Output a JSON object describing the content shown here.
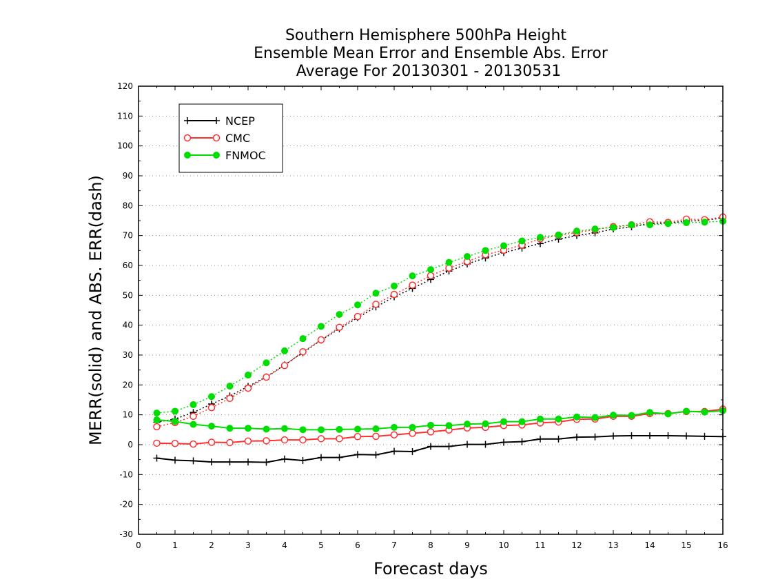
{
  "chart_data": {
    "type": "line",
    "title_lines": [
      "Southern Hemisphere 500hPa Height",
      "Ensemble Mean Error and Ensemble Abs. Error",
      "Average For 20130301 - 20130531"
    ],
    "xlabel": "Forecast days",
    "ylabel": "MERR(solid) and ABS. ERR(dash)",
    "xlim": [
      0,
      16
    ],
    "ylim": [
      -30,
      120
    ],
    "xticks": [
      0,
      1,
      2,
      3,
      4,
      5,
      6,
      7,
      8,
      9,
      10,
      11,
      12,
      13,
      14,
      15,
      16
    ],
    "yticks": [
      -30,
      -20,
      -10,
      0,
      10,
      20,
      30,
      40,
      50,
      60,
      70,
      80,
      90,
      100,
      110,
      120
    ],
    "grid": true,
    "legend_position": "top-left",
    "x": [
      0.5,
      1,
      1.5,
      2,
      2.5,
      3,
      3.5,
      4,
      4.5,
      5,
      5.5,
      6,
      6.5,
      7,
      7.5,
      8,
      8.5,
      9,
      9.5,
      10,
      10.5,
      11,
      11.5,
      12,
      12.5,
      13,
      13.5,
      14,
      14.5,
      15,
      15.5,
      16
    ],
    "series": [
      {
        "name": "NCEP",
        "color": "#000000",
        "marker": "plus",
        "merr": [
          -4.5,
          -5.2,
          -5.4,
          -5.8,
          -5.8,
          -5.8,
          -5.9,
          -4.8,
          -5.3,
          -4.3,
          -4.3,
          -3.3,
          -3.4,
          -2.2,
          -2.3,
          -0.6,
          -0.6,
          0.1,
          0.1,
          0.8,
          1.0,
          1.9,
          1.9,
          2.5,
          2.6,
          2.9,
          3.0,
          3.0,
          3.0,
          2.9,
          2.8,
          2.7
        ],
        "abs_err": [
          7.5,
          8.6,
          10.8,
          13.6,
          16.3,
          19.5,
          22.7,
          26.7,
          30.8,
          35.0,
          38.8,
          42.5,
          46.1,
          49.5,
          52.3,
          55.3,
          58.1,
          60.5,
          62.5,
          64.3,
          65.8,
          67.3,
          68.8,
          70.0,
          70.9,
          72.2,
          72.9,
          74.0,
          74.2,
          74.8,
          75.1,
          75.9
        ]
      },
      {
        "name": "CMC",
        "color": "#ff3030",
        "marker": "open-circle",
        "merr": [
          0.5,
          0.4,
          0.2,
          0.8,
          0.7,
          1.2,
          1.3,
          1.6,
          1.6,
          2.0,
          2.0,
          2.7,
          2.8,
          3.3,
          3.8,
          4.3,
          4.9,
          5.6,
          5.8,
          6.4,
          6.6,
          7.3,
          7.6,
          8.5,
          8.6,
          9.5,
          9.5,
          10.4,
          10.4,
          11.1,
          11.1,
          11.9
        ],
        "abs_err": [
          6.0,
          7.4,
          9.5,
          12.4,
          15.5,
          18.9,
          22.6,
          26.5,
          31.1,
          35.1,
          39.3,
          42.9,
          47.0,
          50.3,
          53.4,
          56.6,
          59.1,
          61.3,
          63.6,
          65.1,
          66.8,
          68.9,
          70.1,
          71.0,
          72.0,
          73.0,
          73.6,
          74.6,
          74.4,
          75.5,
          75.3,
          76.2
        ]
      },
      {
        "name": "FNMOC",
        "color": "#00dd00",
        "marker": "filled-circle",
        "merr": [
          8.3,
          7.8,
          6.8,
          6.2,
          5.5,
          5.5,
          5.2,
          5.4,
          5.0,
          5.0,
          5.1,
          5.2,
          5.3,
          5.8,
          5.8,
          6.5,
          6.4,
          6.9,
          7.0,
          7.7,
          7.7,
          8.6,
          8.6,
          9.3,
          9.1,
          9.9,
          9.8,
          10.8,
          10.3,
          11.2,
          10.9,
          11.4
        ],
        "abs_err": [
          10.6,
          11.2,
          13.4,
          16.1,
          19.6,
          23.3,
          27.4,
          31.4,
          35.5,
          39.6,
          43.6,
          46.8,
          50.7,
          53.1,
          56.5,
          58.6,
          61.0,
          63.0,
          65.0,
          66.6,
          68.2,
          69.4,
          70.2,
          71.5,
          72.2,
          72.7,
          73.6,
          73.6,
          74.0,
          74.3,
          74.5,
          74.8
        ]
      }
    ]
  }
}
